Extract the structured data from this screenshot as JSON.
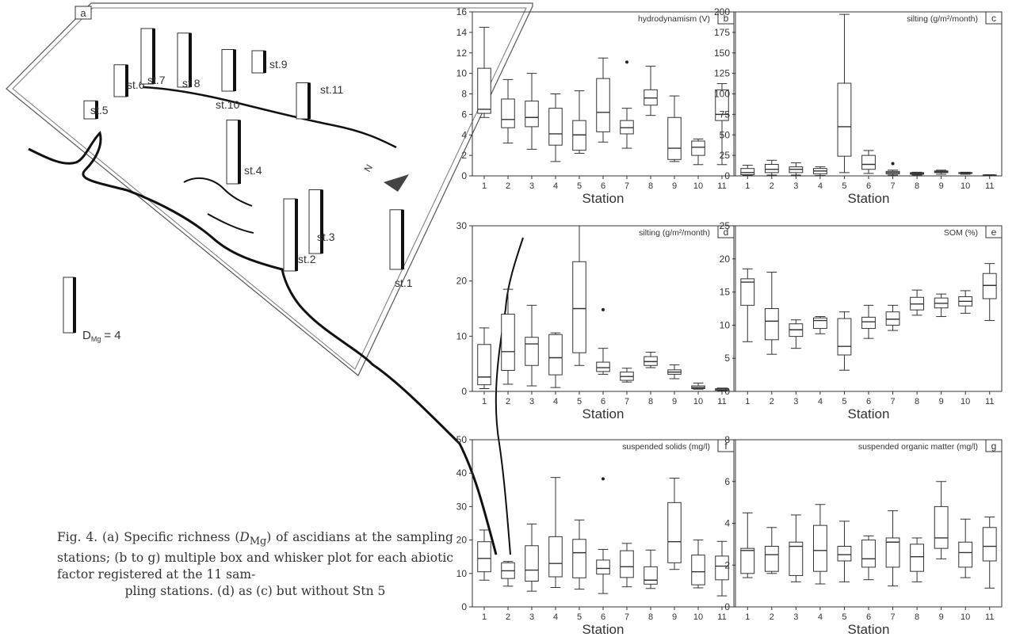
{
  "caption": {
    "line1": "Fig. 4. (a) Specific richness (",
    "sym": "D",
    "sub": "Mg",
    "line1b": ") of ascidians at the",
    "line2": "sampling stations; (b to g) multiple box and whisker",
    "line3": "plot for each abiotic factor registered at the 11 sam-",
    "line4": "pling stations. (d) as (c) but without Stn 5"
  },
  "map": {
    "panel_letter": "a",
    "legend_label": "D",
    "legend_sub": "Mg",
    "legend_value": "= 4",
    "north": "N",
    "stations": [
      {
        "label": "st.1",
        "richness": 4.3
      },
      {
        "label": "st.2",
        "richness": 5.2
      },
      {
        "label": "st.3",
        "richness": 4.6
      },
      {
        "label": "st.4",
        "richness": 4.6
      },
      {
        "label": "st.5",
        "richness": 1.3
      },
      {
        "label": "st.6",
        "richness": 2.3
      },
      {
        "label": "st.7",
        "richness": 4.0
      },
      {
        "label": "st 8",
        "richness": 3.9
      },
      {
        "label": "st.9",
        "richness": 1.6
      },
      {
        "label": "st.10",
        "richness": 3.0
      },
      {
        "label": "st.11",
        "richness": 2.6
      }
    ]
  },
  "chart_data": [
    {
      "type": "box",
      "panel": "b",
      "title": "hydrodynamism (V)",
      "xlabel": "Station",
      "ylim": [
        0,
        16
      ],
      "yticks": [
        0,
        2,
        4,
        6,
        8,
        10,
        12,
        14,
        16
      ],
      "categories": [
        "1",
        "2",
        "3",
        "4",
        "5",
        "6",
        "7",
        "8",
        "9",
        "10",
        "11"
      ],
      "boxes": [
        {
          "min": 5.7,
          "q1": 6.1,
          "median": 6.5,
          "q3": 10.5,
          "max": 14.5
        },
        {
          "min": 3.2,
          "q1": 4.7,
          "median": 5.5,
          "q3": 7.5,
          "max": 9.4
        },
        {
          "min": 2.6,
          "q1": 4.8,
          "median": 5.7,
          "q3": 7.3,
          "max": 10.0
        },
        {
          "min": 1.4,
          "q1": 3.0,
          "median": 4.1,
          "q3": 6.6,
          "max": 8.0
        },
        {
          "min": 2.2,
          "q1": 2.5,
          "median": 4.0,
          "q3": 5.4,
          "max": 8.3
        },
        {
          "min": 3.3,
          "q1": 4.3,
          "median": 6.2,
          "q3": 9.5,
          "max": 11.5
        },
        {
          "min": 2.7,
          "q1": 4.1,
          "median": 4.7,
          "q3": 5.4,
          "max": 6.6
        },
        {
          "min": 5.9,
          "q1": 6.9,
          "median": 7.6,
          "q3": 8.4,
          "max": 10.7
        },
        {
          "min": 1.4,
          "q1": 1.6,
          "median": 2.7,
          "q3": 5.7,
          "max": 7.8
        },
        {
          "min": 1.1,
          "q1": 2.0,
          "median": 2.8,
          "q3": 3.4,
          "max": 3.6
        },
        {
          "min": 1.1,
          "q1": 5.4,
          "median": 6.0,
          "q3": 8.4,
          "max": 9.0
        }
      ],
      "outliers": [
        {
          "x": "7",
          "y": 11.1
        }
      ]
    },
    {
      "type": "box",
      "panel": "c",
      "title": "silting (g/m²/month)",
      "xlabel": "Station",
      "ylim": [
        0,
        200
      ],
      "yticks": [
        0,
        25,
        50,
        75,
        100,
        125,
        150,
        175,
        200
      ],
      "categories": [
        "1",
        "2",
        "3",
        "4",
        "5",
        "6",
        "7",
        "8",
        "9",
        "10",
        "11"
      ],
      "boxes": [
        {
          "min": 0.5,
          "q1": 1.5,
          "median": 4,
          "q3": 9,
          "max": 13
        },
        {
          "min": 1,
          "q1": 4,
          "median": 8,
          "q3": 14,
          "max": 19
        },
        {
          "min": 1,
          "q1": 4,
          "median": 8,
          "q3": 11,
          "max": 16
        },
        {
          "min": 0.5,
          "q1": 2.5,
          "median": 6,
          "q3": 9,
          "max": 11
        },
        {
          "min": 4,
          "q1": 24,
          "median": 60,
          "q3": 113,
          "max": 197
        },
        {
          "min": 3,
          "q1": 8,
          "median": 14,
          "q3": 25,
          "max": 31
        },
        {
          "min": 1,
          "q1": 2.5,
          "median": 4,
          "q3": 5.5,
          "max": 7
        },
        {
          "min": 1,
          "q1": 2,
          "median": 3,
          "q3": 4,
          "max": 4.5
        },
        {
          "min": 2,
          "q1": 4,
          "median": 5,
          "q3": 6,
          "max": 7
        },
        {
          "min": 2,
          "q1": 3,
          "median": 3.5,
          "q3": 4,
          "max": 4.5
        },
        {
          "min": 0.2,
          "q1": 0.5,
          "median": 0.8,
          "q3": 1.2,
          "max": 1.5
        }
      ],
      "outliers": [
        {
          "x": "7",
          "y": 15
        }
      ]
    },
    {
      "type": "box",
      "panel": "d",
      "title": "silting (g/m²/month)",
      "xlabel": "Station",
      "ylim": [
        0,
        30
      ],
      "yticks": [
        0,
        10,
        20,
        30
      ],
      "categories": [
        "1",
        "2",
        "3",
        "4",
        "5",
        "6",
        "7",
        "8",
        "9",
        "10",
        "11"
      ],
      "boxes": [
        {
          "min": 0.5,
          "q1": 1.2,
          "median": 2.6,
          "q3": 8.5,
          "max": 11.5
        },
        {
          "min": 1.3,
          "q1": 3.8,
          "median": 7.2,
          "q3": 14.0,
          "max": 18.5
        },
        {
          "min": 1.0,
          "q1": 4.7,
          "median": 8.6,
          "q3": 9.8,
          "max": 15.6
        },
        {
          "min": 0.7,
          "q1": 3.0,
          "median": 6.1,
          "q3": 10.3,
          "max": 10.6
        },
        {
          "min": 4.7,
          "q1": 7.0,
          "median": 15.0,
          "q3": 23.5,
          "max": 30.0
        },
        {
          "min": 3.1,
          "q1": 3.6,
          "median": 4.3,
          "q3": 5.3,
          "max": 7.8
        },
        {
          "min": 1.7,
          "q1": 2.0,
          "median": 2.7,
          "q3": 3.5,
          "max": 4.2
        },
        {
          "min": 4.3,
          "q1": 4.7,
          "median": 5.4,
          "q3": 6.3,
          "max": 7.1
        },
        {
          "min": 2.3,
          "q1": 3.1,
          "median": 3.5,
          "q3": 3.9,
          "max": 4.8
        },
        {
          "min": 0.4,
          "q1": 0.5,
          "median": 0.7,
          "q3": 1.0,
          "max": 1.5
        },
        {
          "min": 0.1,
          "q1": 0.2,
          "median": 0.3,
          "q3": 0.5,
          "max": 0.6
        }
      ],
      "outliers": [
        {
          "x": "6",
          "y": 14.8
        }
      ]
    },
    {
      "type": "box",
      "panel": "e",
      "title": "SOM (%)",
      "xlabel": "Station",
      "ylim": [
        0,
        25
      ],
      "yticks": [
        0,
        5,
        10,
        15,
        20,
        25
      ],
      "categories": [
        "1",
        "2",
        "3",
        "4",
        "5",
        "6",
        "7",
        "8",
        "9",
        "10",
        "11"
      ],
      "boxes": [
        {
          "min": 7.5,
          "q1": 13.0,
          "median": 16.5,
          "q3": 17.0,
          "max": 18.5
        },
        {
          "min": 5.6,
          "q1": 7.8,
          "median": 10.6,
          "q3": 12.5,
          "max": 18.0
        },
        {
          "min": 6.5,
          "q1": 8.3,
          "median": 9.3,
          "q3": 10.2,
          "max": 10.8
        },
        {
          "min": 8.7,
          "q1": 9.5,
          "median": 10.7,
          "q3": 11.1,
          "max": 11.3
        },
        {
          "min": 3.2,
          "q1": 5.5,
          "median": 6.8,
          "q3": 11.0,
          "max": 12.0
        },
        {
          "min": 8.0,
          "q1": 9.5,
          "median": 10.5,
          "q3": 11.2,
          "max": 13.0
        },
        {
          "min": 9.2,
          "q1": 10.0,
          "median": 10.9,
          "q3": 12.0,
          "max": 13.0
        },
        {
          "min": 11.5,
          "q1": 12.3,
          "median": 13.2,
          "q3": 14.2,
          "max": 15.3
        },
        {
          "min": 11.3,
          "q1": 12.6,
          "median": 13.3,
          "q3": 14.1,
          "max": 14.7
        },
        {
          "min": 11.8,
          "q1": 12.9,
          "median": 13.6,
          "q3": 14.3,
          "max": 15.2
        },
        {
          "min": 10.7,
          "q1": 14.0,
          "median": 16.0,
          "q3": 17.8,
          "max": 19.3
        }
      ],
      "outliers": []
    },
    {
      "type": "box",
      "panel": "f",
      "title": "suspended solids (mg/l)",
      "xlabel": "Station",
      "ylim": [
        0,
        50
      ],
      "yticks": [
        0,
        10,
        20,
        30,
        40,
        50
      ],
      "categories": [
        "1",
        "2",
        "3",
        "4",
        "5",
        "6",
        "7",
        "8",
        "9",
        "10",
        "11"
      ],
      "boxes": [
        {
          "min": 8.0,
          "q1": 10.5,
          "median": 14.5,
          "q3": 19.5,
          "max": 23.0
        },
        {
          "min": 6.2,
          "q1": 8.5,
          "median": 10.8,
          "q3": 13.2,
          "max": 13.6
        },
        {
          "min": 4.7,
          "q1": 7.7,
          "median": 11.0,
          "q3": 18.3,
          "max": 24.8
        },
        {
          "min": 5.8,
          "q1": 9.0,
          "median": 13.0,
          "q3": 21.0,
          "max": 38.7
        },
        {
          "min": 5.3,
          "q1": 8.7,
          "median": 16.2,
          "q3": 20.2,
          "max": 26.0
        },
        {
          "min": 4.0,
          "q1": 9.8,
          "median": 11.5,
          "q3": 14.0,
          "max": 17.2
        },
        {
          "min": 6.0,
          "q1": 8.8,
          "median": 12.0,
          "q3": 16.8,
          "max": 19.0
        },
        {
          "min": 5.5,
          "q1": 6.8,
          "median": 8.0,
          "q3": 12.0,
          "max": 17.0
        },
        {
          "min": 11.2,
          "q1": 13.2,
          "median": 19.5,
          "q3": 31.2,
          "max": 38.5
        },
        {
          "min": 5.7,
          "q1": 6.6,
          "median": 10.5,
          "q3": 15.5,
          "max": 20.0
        },
        {
          "min": 3.3,
          "q1": 8.1,
          "median": 12.2,
          "q3": 15.2,
          "max": 19.6
        }
      ],
      "outliers": [
        {
          "x": "6",
          "y": 38.3
        }
      ]
    },
    {
      "type": "box",
      "panel": "g",
      "title": "suspended organic matter (mg/l)",
      "xlabel": "Station",
      "ylim": [
        0,
        8
      ],
      "yticks": [
        0,
        2,
        4,
        6,
        8
      ],
      "categories": [
        "1",
        "2",
        "3",
        "4",
        "5",
        "6",
        "7",
        "8",
        "9",
        "10",
        "11"
      ],
      "boxes": [
        {
          "min": 1.4,
          "q1": 1.6,
          "median": 2.7,
          "q3": 2.8,
          "max": 4.5
        },
        {
          "min": 1.6,
          "q1": 1.7,
          "median": 2.5,
          "q3": 2.9,
          "max": 3.8
        },
        {
          "min": 1.2,
          "q1": 1.5,
          "median": 2.9,
          "q3": 3.1,
          "max": 4.4
        },
        {
          "min": 1.1,
          "q1": 1.7,
          "median": 2.7,
          "q3": 3.9,
          "max": 4.9
        },
        {
          "min": 1.2,
          "q1": 2.2,
          "median": 2.5,
          "q3": 2.9,
          "max": 4.1
        },
        {
          "min": 1.3,
          "q1": 1.9,
          "median": 2.3,
          "q3": 3.2,
          "max": 3.4
        },
        {
          "min": 1.0,
          "q1": 1.9,
          "median": 3.1,
          "q3": 3.3,
          "max": 4.6
        },
        {
          "min": 1.2,
          "q1": 1.7,
          "median": 2.4,
          "q3": 3.0,
          "max": 3.3
        },
        {
          "min": 2.3,
          "q1": 2.8,
          "median": 3.3,
          "q3": 4.8,
          "max": 6.0
        },
        {
          "min": 1.4,
          "q1": 1.9,
          "median": 2.6,
          "q3": 3.1,
          "max": 4.2
        },
        {
          "min": 0.9,
          "q1": 2.2,
          "median": 2.9,
          "q3": 3.8,
          "max": 4.3
        }
      ],
      "outliers": []
    }
  ]
}
